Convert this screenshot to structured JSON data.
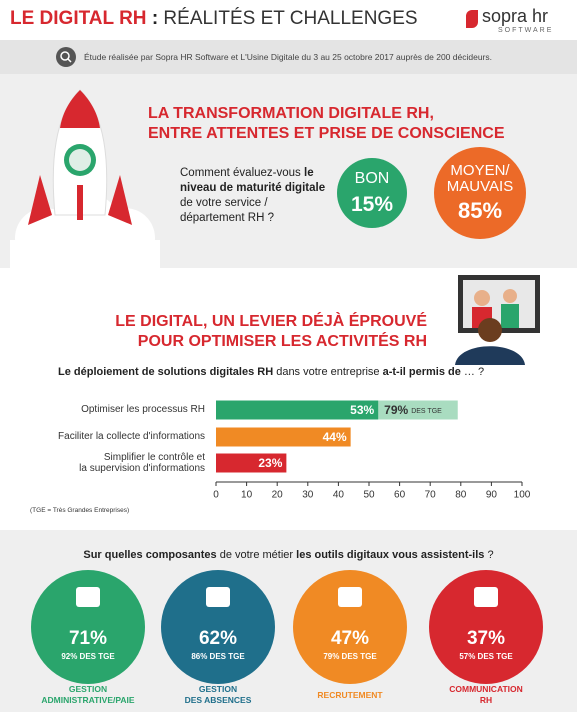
{
  "header": {
    "title_highlight": "LE DIGITAL RH",
    "title_separator": ":",
    "title_rest": "RÉALITÉS ET CHALLENGES",
    "logo": "sopra hr",
    "logo_sub": "SOFTWARE"
  },
  "study_note": "Étude réalisée par Sopra HR Software et L'Usine Digitale du 3 au 25 octobre 2017 auprès de 200 décideurs.",
  "section1": {
    "title_lines": [
      "LA TRANSFORMATION DIGITALE RH,",
      "ENTRE ATTENTES ET PRISE DE CONSCIENCE"
    ],
    "question": [
      "Comment évaluez-vous",
      "le niveau de maturité",
      "digitale",
      "de votre service /",
      "département RH ?"
    ],
    "results": [
      {
        "label": "BON",
        "value_label": "15%",
        "color": "#2aa56c"
      },
      {
        "label": "MOYEN/ MAUVAIS",
        "value_label": "85%",
        "color": "#ec6a28"
      }
    ]
  },
  "section2": {
    "title_lines": [
      "LE DIGITAL, UN LEVIER DÉJÀ ÉPROUVÉ",
      "POUR OPTIMISER LES ACTIVITÉS RH"
    ],
    "note": "(TGE = Très Grandes Entreprises)"
  },
  "chart_data": {
    "type": "bar",
    "orientation": "horizontal",
    "title": [
      "Le déploiement de solutions digitales RH",
      "dans votre entreprise",
      "a-t-il permis de",
      "… ?"
    ],
    "categories": [
      "Optimiser les processus RH",
      "Faciliter la collecte d'informations",
      "Simplifier le contrôle et\nla supervision d'informations"
    ],
    "series": [
      {
        "values": [
          53,
          44,
          23
        ],
        "value_labels": [
          "53%",
          "44%",
          "23%"
        ],
        "colors": [
          "#2aa56c",
          "#f08a24",
          "#d7282f"
        ]
      },
      {
        "values": [
          79,
          null,
          null
        ],
        "value_labels": [
          "79%",
          null,
          null
        ],
        "label_suffix": "DES TGE",
        "color": "#a9dcc0"
      }
    ],
    "xlim": [
      0,
      100
    ],
    "xticks": [
      0,
      10,
      20,
      30,
      40,
      50,
      60,
      70,
      80,
      90,
      100
    ]
  },
  "section3": {
    "question": [
      "Sur quelles composantes",
      "de votre métier",
      "les outils digitaux vous assistent-ils",
      "?"
    ],
    "items": [
      {
        "value_label": "71%",
        "tge_label": "92% DES TGE",
        "label": "GESTION\nADMINISTRATIVE/PAIE",
        "color": "#2aa56c"
      },
      {
        "value_label": "62%",
        "tge_label": "86% DES TGE",
        "label": "GESTION\nDES ABSENCES",
        "color": "#1f6f8b"
      },
      {
        "value_label": "47%",
        "tge_label": "79% DES TGE",
        "label": "RECRUTEMENT",
        "color": "#f08a24"
      },
      {
        "value_label": "37%",
        "tge_label": "57% DES TGE",
        "label": "COMMUNICATION\nRH",
        "color": "#d7282f"
      }
    ]
  }
}
